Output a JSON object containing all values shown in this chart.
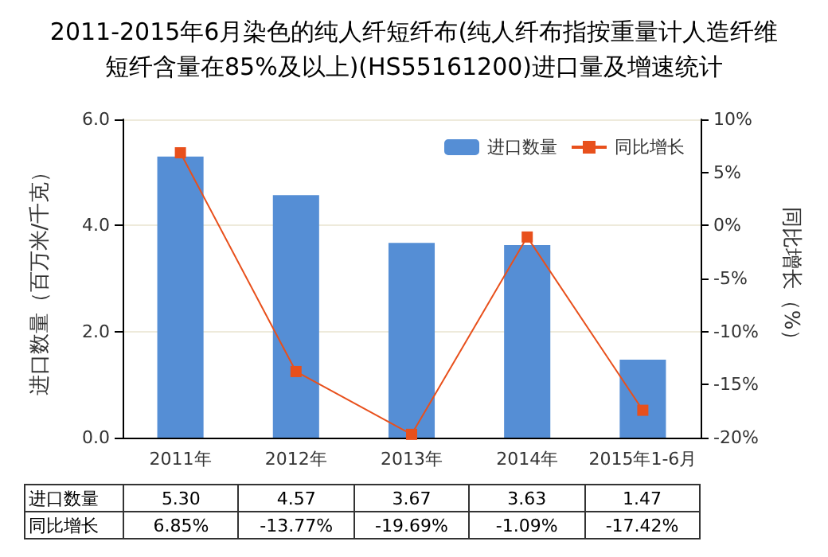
{
  "chart_data": {
    "type": "bar",
    "title": "2011-2015年6月染色的纯人纤短纤布(纯人纤布指按重量计人造纤维短纤含量在85%及以上)(HS55161200)进口量及增速统计",
    "ylabel": "进口数量（百万米/千克）",
    "y2label": "同比增长（%）",
    "categories": [
      "2011年",
      "2012年",
      "2013年",
      "2014年",
      "2015年1-6月"
    ],
    "series": [
      {
        "name": "进口数量",
        "color": "#558ed5",
        "values": [
          5.3,
          4.57,
          3.67,
          3.63,
          1.47
        ],
        "value_labels": [
          "5.30",
          "4.57",
          "3.67",
          "3.63",
          "1.47"
        ]
      },
      {
        "name": "同比增长",
        "type": "line",
        "axis": "y2",
        "color": "#e8501c",
        "values": [
          6.85,
          -13.77,
          -19.69,
          -1.09,
          -17.42
        ],
        "value_labels": [
          "6.85%",
          "-13.77%",
          "-19.69%",
          "-1.09%",
          "-17.42%"
        ]
      }
    ],
    "ylim": [
      0,
      6
    ],
    "yticks": [
      {
        "value": 0,
        "label": "0.0"
      },
      {
        "value": 2,
        "label": "2.0"
      },
      {
        "value": 4,
        "label": "4.0"
      },
      {
        "value": 6,
        "label": "6.0"
      }
    ],
    "y2lim": [
      -20,
      10
    ],
    "y2ticks": [
      {
        "value": -20,
        "label": "-20%"
      },
      {
        "value": -15,
        "label": "-15%"
      },
      {
        "value": -10,
        "label": "-10%"
      },
      {
        "value": -5,
        "label": "-5%"
      },
      {
        "value": 0,
        "label": "0%"
      },
      {
        "value": 5,
        "label": "5%"
      },
      {
        "value": 10,
        "label": "10%"
      }
    ],
    "grid": "y",
    "legend": "top right",
    "marker": "square",
    "line_style": "solid"
  }
}
